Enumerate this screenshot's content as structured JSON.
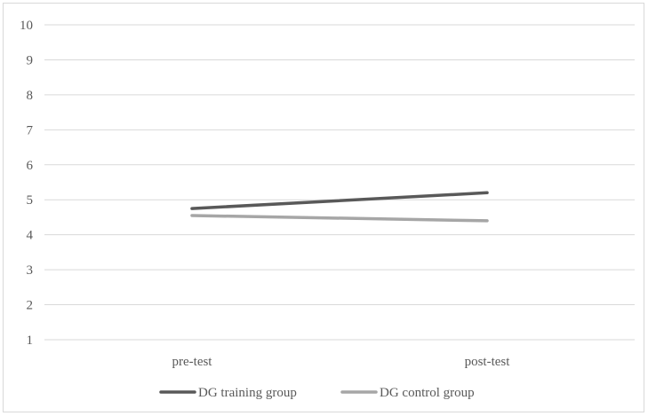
{
  "chart_data": {
    "type": "line",
    "title": "",
    "xlabel": "",
    "ylabel": "",
    "categories": [
      "pre-test",
      "post-test"
    ],
    "ylim": [
      1,
      10
    ],
    "yticks": [
      "1",
      "2",
      "3",
      "4",
      "5",
      "6",
      "7",
      "8",
      "9",
      "10"
    ],
    "grid": true,
    "legend_position": "bottom",
    "series": [
      {
        "name": "DG training group",
        "values": [
          4.75,
          5.2
        ],
        "color": "#595959"
      },
      {
        "name": "DG control group",
        "values": [
          4.55,
          4.4
        ],
        "color": "#a6a6a6"
      }
    ]
  }
}
